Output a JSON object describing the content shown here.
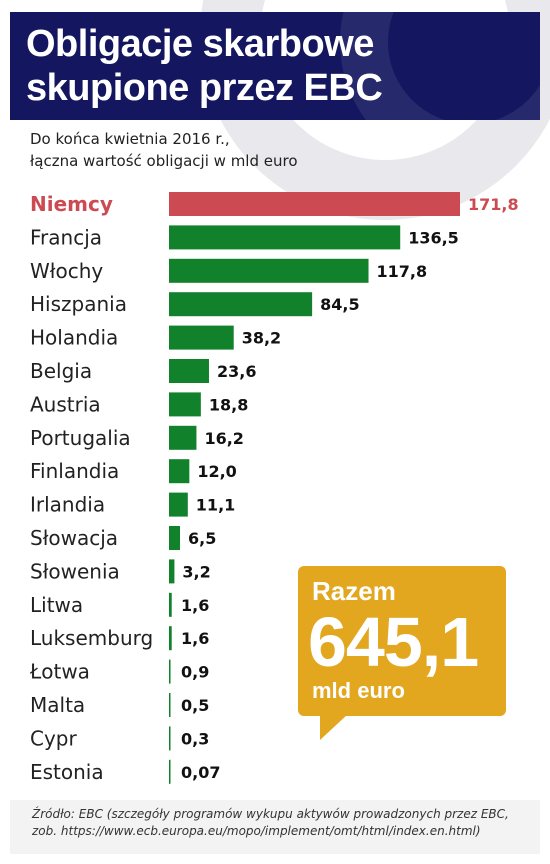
{
  "header": {
    "title_line1": "Obligacje skarbowe",
    "title_line2": "skupione przez EBC"
  },
  "subtitle": {
    "line1": "Do końca kwietnia 2016 r.,",
    "line2": "łączna wartość obligacji w mld euro"
  },
  "chart_data": {
    "type": "bar",
    "orientation": "horizontal",
    "categories": [
      "Niemcy",
      "Francja",
      "Włochy",
      "Hiszpania",
      "Holandia",
      "Belgia",
      "Austria",
      "Portugalia",
      "Finlandia",
      "Irlandia",
      "Słowacja",
      "Słowenia",
      "Litwa",
      "Luksemburg",
      "Łotwa",
      "Malta",
      "Cypr",
      "Estonia"
    ],
    "values": [
      171.8,
      136.5,
      117.8,
      84.5,
      38.2,
      23.6,
      18.8,
      16.2,
      12.0,
      11.1,
      6.5,
      3.2,
      1.6,
      1.6,
      0.9,
      0.5,
      0.3,
      0.07
    ],
    "value_labels": [
      "171,8",
      "136,5",
      "117,8",
      "84,5",
      "38,2",
      "23,6",
      "18,8",
      "16,2",
      "12,0",
      "11,1",
      "6,5",
      "3,2",
      "1,6",
      "1,6",
      "0,9",
      "0,5",
      "0,3",
      "0,07"
    ],
    "highlight_index": 0,
    "colors": {
      "highlight": "#cc4b52",
      "default": "#11812b"
    },
    "xlim": [
      0,
      171.8
    ]
  },
  "total": {
    "label": "Razem",
    "value": "645,1",
    "unit": "mld euro"
  },
  "footer": {
    "line1": "Źródło: EBC (szczegóły programów wykupu aktywów prowadzonych przez EBC,",
    "line2": "zob. https://www.ecb.europa.eu/mopo/implement/omt/html/index.en.html)"
  }
}
